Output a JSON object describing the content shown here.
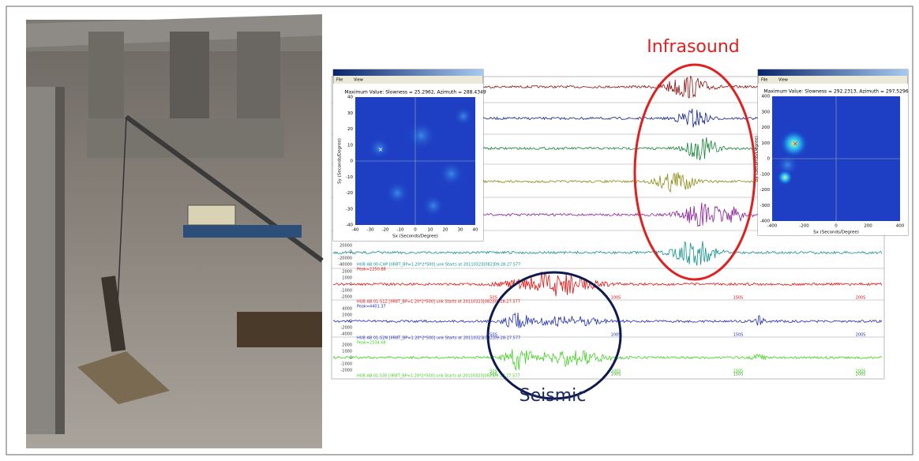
{
  "labels": {
    "infrasound": "Infrasound",
    "seismic": "Seismic"
  },
  "fk_left": {
    "menu": [
      "File",
      "View"
    ],
    "title": "Maximum Value: Slowness = 25.2962, Azimuth = 288.4349",
    "x_label": "Sx (Seconds/Degree)",
    "y_label": "Sy (Seconds/Degree)",
    "x_ticks": [
      "-40",
      "-30",
      "-20",
      "-10",
      "0",
      "10",
      "20",
      "30",
      "40"
    ],
    "y_ticks": [
      "40",
      "30",
      "20",
      "10",
      "0",
      "-10",
      "-20",
      "-30",
      "-40"
    ]
  },
  "fk_right": {
    "menu": [
      "File",
      "View"
    ],
    "title": "Maximum Value: Slowness = 292.2313, Azimuth = 297.5296",
    "x_label": "Sx (Seconds/Degree)",
    "y_label": "Sy (Seconds/Degree)",
    "x_ticks": [
      "-400",
      "-200",
      "0",
      "200",
      "400"
    ],
    "y_ticks": [
      "400",
      "300",
      "200",
      "100",
      "0",
      "-100",
      "-200",
      "-300",
      "-400"
    ]
  },
  "waveforms": {
    "time_ticks": [
      "50S",
      "100S",
      "150S",
      "200S"
    ],
    "traces": [
      {
        "header": "HUB AB 00-CHP  [IIR8T_BP=1.20*2*500] unk Starts at 20110323[082]09:28:27.577",
        "peak": "Peak=2250.88",
        "amplitudes": [
          "2000",
          "1000",
          "0",
          "-1000",
          "-2000"
        ]
      },
      {
        "header": "HUB AB 01-S1Z  [IIR8T_BP=1.20*2*500] unk Starts at 20110323[082]09:28:27.577",
        "peak": "Peak=4401.37",
        "amplitudes": [
          "4000",
          "2000",
          "0",
          "-2000",
          "-4000"
        ]
      },
      {
        "header": "HUB AB 01-S2N  [IIR8T_BP=1.20*2*500] unk Starts at 20110323[082]09:28:27.577",
        "peak": "Peak=2534.68",
        "amplitudes": [
          "2000",
          "1000",
          "0",
          "-1000",
          "-2000"
        ]
      },
      {
        "header": "HUB AB 01-S3E  [IIR8T_BP=1.20*2*500] unk Starts at 20110323[082]09:28:27.577"
      }
    ],
    "top_amplitudes": [
      "20000",
      "0",
      "-20000",
      "-40000"
    ]
  }
}
